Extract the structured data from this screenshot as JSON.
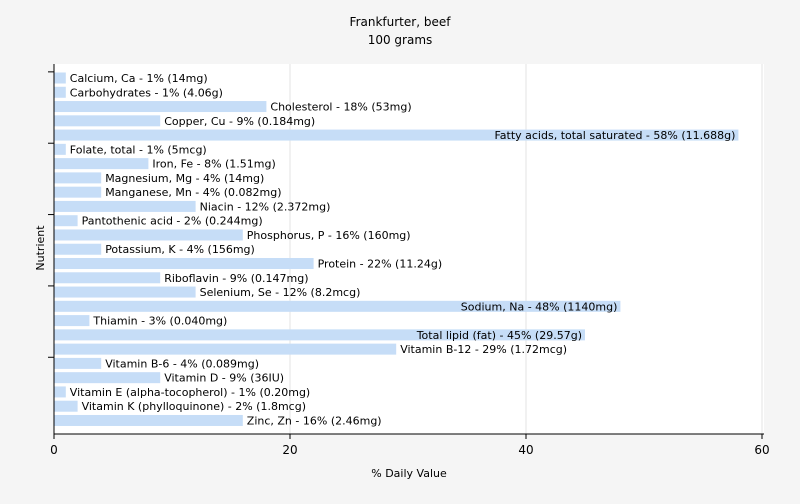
{
  "chart_data": {
    "type": "bar",
    "orientation": "horizontal",
    "title": "Frankfurter, beef",
    "subtitle": "100 grams",
    "xlabel": "% Daily Value",
    "ylabel": "Nutrient",
    "xlim": [
      0,
      60
    ],
    "xticks": [
      "0",
      "20",
      "40",
      "60"
    ],
    "grid": true,
    "bar_color": "#c6ddf7",
    "categories": [
      "Calcium, Ca",
      "Carbohydrates",
      "Cholesterol",
      "Copper, Cu",
      "Fatty acids, total saturated",
      "Folate, total",
      "Iron, Fe",
      "Magnesium, Mg",
      "Manganese, Mn",
      "Niacin",
      "Pantothenic acid",
      "Phosphorus, P",
      "Potassium, K",
      "Protein",
      "Riboflavin",
      "Selenium, Se",
      "Sodium, Na",
      "Thiamin",
      "Total lipid (fat)",
      "Vitamin B-12",
      "Vitamin B-6",
      "Vitamin D",
      "Vitamin E (alpha-tocopherol)",
      "Vitamin K (phylloquinone)",
      "Zinc, Zn"
    ],
    "values": [
      1,
      1,
      18,
      9,
      58,
      1,
      8,
      4,
      4,
      12,
      2,
      16,
      4,
      22,
      9,
      12,
      48,
      3,
      45,
      29,
      4,
      9,
      1,
      2,
      16
    ],
    "labels": [
      "Calcium, Ca - 1% (14mg)",
      "Carbohydrates - 1% (4.06g)",
      "Cholesterol - 18% (53mg)",
      "Copper, Cu - 9% (0.184mg)",
      "Fatty acids, total saturated - 58% (11.688g)",
      "Folate, total - 1% (5mcg)",
      "Iron, Fe - 8% (1.51mg)",
      "Magnesium, Mg - 4% (14mg)",
      "Manganese, Mn - 4% (0.082mg)",
      "Niacin - 12% (2.372mg)",
      "Pantothenic acid - 2% (0.244mg)",
      "Phosphorus, P - 16% (160mg)",
      "Potassium, K - 4% (156mg)",
      "Protein - 22% (11.24g)",
      "Riboflavin - 9% (0.147mg)",
      "Selenium, Se - 12% (8.2mcg)",
      "Sodium, Na - 48% (1140mg)",
      "Thiamin - 3% (0.040mg)",
      "Total lipid (fat) - 45% (29.57g)",
      "Vitamin B-12 - 29% (1.72mcg)",
      "Vitamin B-6 - 4% (0.089mg)",
      "Vitamin D - 9% (36IU)",
      "Vitamin E (alpha-tocopherol) - 1% (0.20mg)",
      "Vitamin K (phylloquinone) - 2% (1.8mcg)",
      "Zinc, Zn - 16% (2.46mg)"
    ]
  }
}
